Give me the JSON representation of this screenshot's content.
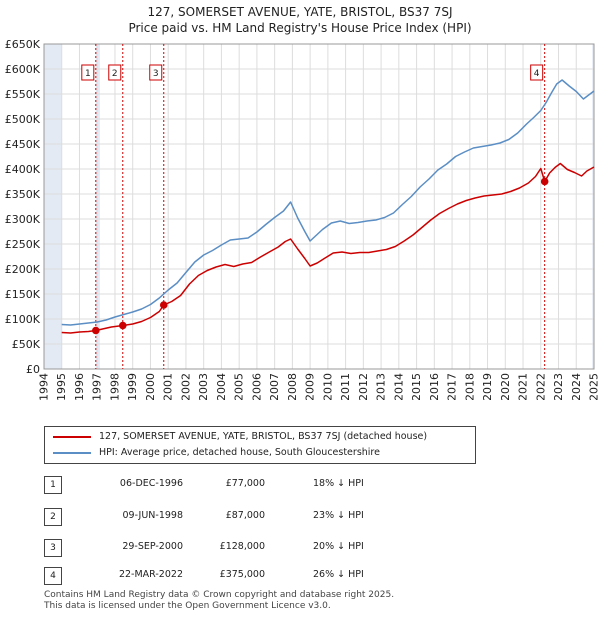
{
  "title": {
    "line1": "127, SOMERSET AVENUE, YATE, BRISTOL, BS37 7SJ",
    "line2": "Price paid vs. HM Land Registry's House Price Index (HPI)"
  },
  "chart_data": {
    "type": "line",
    "title": "Price paid vs. HM Land Registry's House Price Index (HPI)",
    "xlim": [
      1994,
      2025
    ],
    "ylim": [
      0,
      650000
    ],
    "grid": true,
    "ytick_values": [
      0,
      50000,
      100000,
      150000,
      200000,
      250000,
      300000,
      350000,
      400000,
      450000,
      500000,
      550000,
      600000,
      650000
    ],
    "ytick_labels": [
      "£0",
      "£50K",
      "£100K",
      "£150K",
      "£200K",
      "£250K",
      "£300K",
      "£350K",
      "£400K",
      "£450K",
      "£500K",
      "£550K",
      "£600K",
      "£650K"
    ],
    "xtick_values": [
      1994,
      1995,
      1996,
      1997,
      1998,
      1999,
      2000,
      2001,
      2002,
      2003,
      2004,
      2005,
      2006,
      2007,
      2008,
      2009,
      2010,
      2011,
      2012,
      2013,
      2014,
      2015,
      2016,
      2017,
      2018,
      2019,
      2020,
      2021,
      2022,
      2023,
      2024,
      2025
    ],
    "xtick_labels": [
      "1994",
      "1995",
      "1996",
      "1997",
      "1998",
      "1999",
      "2000",
      "2001",
      "2002",
      "2003",
      "2004",
      "2005",
      "2006",
      "2007",
      "2008",
      "2009",
      "2010",
      "2011",
      "2012",
      "2013",
      "2014",
      "2015",
      "2016",
      "2017",
      "2018",
      "2019",
      "2020",
      "2021",
      "2022",
      "2023",
      "2024",
      "2025"
    ],
    "shaded_spans": [
      [
        1994,
        1995
      ],
      [
        1996.92,
        1997.15
      ],
      [
        2024.9,
        2025
      ]
    ],
    "series": [
      {
        "name": "127, SOMERSET AVENUE, YATE, BRISTOL, BS37 7SJ (detached house)",
        "color": "#cc0000",
        "x": [
          1995.0,
          1995.5,
          1996.0,
          1996.5,
          1996.92,
          1997.3,
          1997.8,
          1998.44,
          1999.0,
          1999.5,
          2000.0,
          2000.5,
          2000.75,
          2001.2,
          2001.7,
          2002.2,
          2002.7,
          2003.2,
          2003.7,
          2004.2,
          2004.7,
          2005.2,
          2005.7,
          2006.2,
          2006.7,
          2007.2,
          2007.6,
          2007.9,
          2008.3,
          2008.7,
          2009.0,
          2009.4,
          2009.8,
          2010.3,
          2010.8,
          2011.3,
          2011.8,
          2012.3,
          2012.8,
          2013.3,
          2013.8,
          2014.3,
          2014.8,
          2015.3,
          2015.8,
          2016.3,
          2016.8,
          2017.3,
          2017.8,
          2018.3,
          2018.8,
          2019.3,
          2019.8,
          2020.3,
          2020.8,
          2021.3,
          2021.7,
          2022.0,
          2022.22,
          2022.5,
          2022.8,
          2023.1,
          2023.5,
          2023.9,
          2024.3,
          2024.6,
          2025.0
        ],
        "y": [
          73000,
          72000,
          74000,
          75000,
          77000,
          80000,
          84000,
          87000,
          90000,
          95000,
          103000,
          115000,
          128000,
          135000,
          147000,
          170000,
          187000,
          197000,
          204000,
          209000,
          205000,
          210000,
          213000,
          224000,
          234000,
          244000,
          255000,
          260000,
          240000,
          221000,
          206000,
          212000,
          221000,
          232000,
          234000,
          231000,
          233000,
          233000,
          236000,
          239000,
          245000,
          256000,
          268000,
          283000,
          298000,
          311000,
          321000,
          330000,
          337000,
          342000,
          346000,
          348000,
          350000,
          355000,
          362000,
          372000,
          385000,
          401000,
          375000,
          392000,
          403000,
          411000,
          399000,
          393000,
          386000,
          396000,
          404000
        ]
      },
      {
        "name": "HPI: Average price, detached house, South Gloucestershire",
        "color": "#5b8ec4",
        "x": [
          1995.0,
          1995.5,
          1996.0,
          1996.5,
          1997.0,
          1997.5,
          1998.0,
          1998.5,
          1999.0,
          1999.5,
          2000.0,
          2000.5,
          2001.0,
          2001.5,
          2002.0,
          2002.5,
          2003.0,
          2003.5,
          2004.0,
          2004.5,
          2005.0,
          2005.5,
          2006.0,
          2006.5,
          2007.0,
          2007.5,
          2007.9,
          2008.3,
          2008.7,
          2009.0,
          2009.3,
          2009.7,
          2010.2,
          2010.7,
          2011.2,
          2011.7,
          2012.2,
          2012.7,
          2013.2,
          2013.7,
          2014.2,
          2014.7,
          2015.2,
          2015.7,
          2016.2,
          2016.7,
          2017.2,
          2017.7,
          2018.2,
          2018.7,
          2019.2,
          2019.7,
          2020.2,
          2020.7,
          2021.2,
          2021.6,
          2022.0,
          2022.3,
          2022.6,
          2022.9,
          2023.2,
          2023.6,
          2024.0,
          2024.4,
          2024.7,
          2025.0
        ],
        "y": [
          89000,
          88000,
          90000,
          92000,
          94000,
          98000,
          104000,
          109000,
          114000,
          120000,
          129000,
          142000,
          158000,
          172000,
          193000,
          214000,
          228000,
          237000,
          248000,
          258000,
          260000,
          262000,
          274000,
          289000,
          303000,
          316000,
          334000,
          302000,
          275000,
          256000,
          266000,
          279000,
          292000,
          296000,
          291000,
          293000,
          296000,
          298000,
          303000,
          312000,
          329000,
          345000,
          364000,
          380000,
          398000,
          410000,
          425000,
          434000,
          442000,
          445000,
          448000,
          452000,
          459000,
          472000,
          490000,
          503000,
          517000,
          533000,
          552000,
          570000,
          578000,
          566000,
          555000,
          540000,
          548000,
          556000
        ]
      }
    ],
    "transactions": [
      {
        "n": "1",
        "x": 1996.92,
        "y": 77000
      },
      {
        "n": "2",
        "x": 1998.44,
        "y": 87000
      },
      {
        "n": "3",
        "x": 2000.75,
        "y": 128000
      },
      {
        "n": "4",
        "x": 2022.22,
        "y": 375000
      }
    ]
  },
  "legend": {
    "red_label": "127, SOMERSET AVENUE, YATE, BRISTOL, BS37 7SJ (detached house)",
    "blue_label": "HPI: Average price, detached house, South Gloucestershire",
    "red_color": "#cc0000",
    "blue_color": "#5b8ec4"
  },
  "table": {
    "rows": [
      {
        "n": "1",
        "date": "06-DEC-1996",
        "price": "£77,000",
        "hpi": "18% ↓ HPI"
      },
      {
        "n": "2",
        "date": "09-JUN-1998",
        "price": "£87,000",
        "hpi": "23% ↓ HPI"
      },
      {
        "n": "3",
        "date": "29-SEP-2000",
        "price": "£128,000",
        "hpi": "20% ↓ HPI"
      },
      {
        "n": "4",
        "date": "22-MAR-2022",
        "price": "£375,000",
        "hpi": "26% ↓ HPI"
      }
    ]
  },
  "footer": {
    "line1": "Contains HM Land Registry data © Crown copyright and database right 2025.",
    "line2": "This data is licensed under the Open Government Licence v3.0."
  }
}
